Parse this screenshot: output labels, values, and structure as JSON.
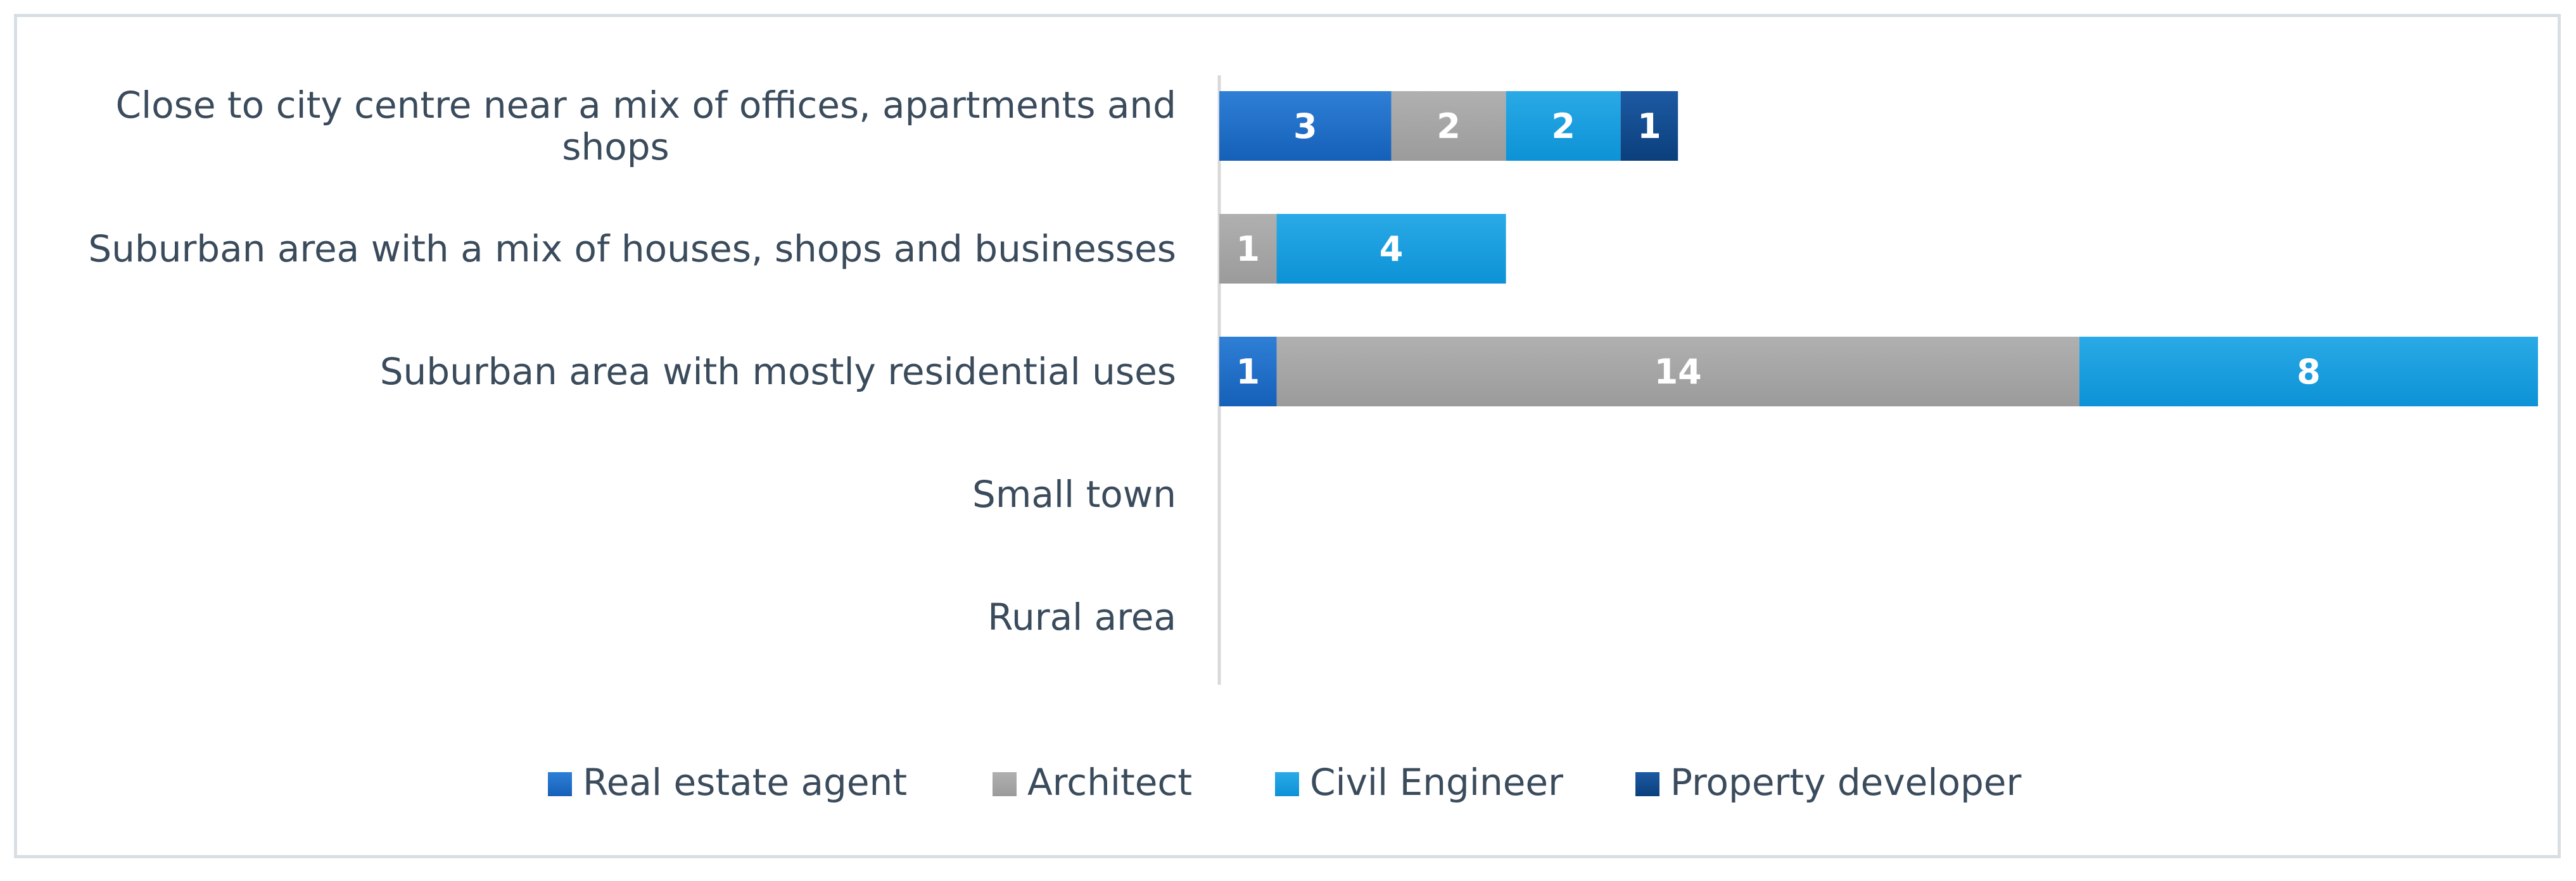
{
  "chart_data": {
    "type": "bar",
    "orientation": "horizontal",
    "stacked": true,
    "title": "",
    "xlabel": "",
    "ylabel": "",
    "categories": [
      "Close to city centre near a mix of offices, apartments and shops",
      "Suburban area with a mix of houses, shops and businesses",
      "Suburban area with mostly residential uses",
      "Small town",
      "Rural area"
    ],
    "category_lines": [
      [
        "Close to city centre near a mix of offices, apartments and",
        "shops"
      ],
      [
        "Suburban area with a mix of houses, shops and businesses"
      ],
      [
        "Suburban area with mostly residential uses"
      ],
      [
        "Small town"
      ],
      [
        "Rural area"
      ]
    ],
    "series": [
      {
        "name": "Real estate agent",
        "color": "#1f6fc5",
        "values": [
          3,
          0,
          1,
          0,
          0
        ]
      },
      {
        "name": "Architect",
        "color": "#a5a5a5",
        "values": [
          2,
          1,
          14,
          0,
          0
        ]
      },
      {
        "name": "Civil Engineer",
        "color": "#1aa0df",
        "values": [
          2,
          4,
          8,
          0,
          0
        ]
      },
      {
        "name": "Property developer",
        "color": "#124a8c",
        "values": [
          1,
          0,
          0,
          0,
          0
        ]
      }
    ],
    "xlim": [
      0,
      23
    ],
    "grid": false,
    "axes_visible": false,
    "data_labels": true,
    "legend_position": "bottom"
  }
}
